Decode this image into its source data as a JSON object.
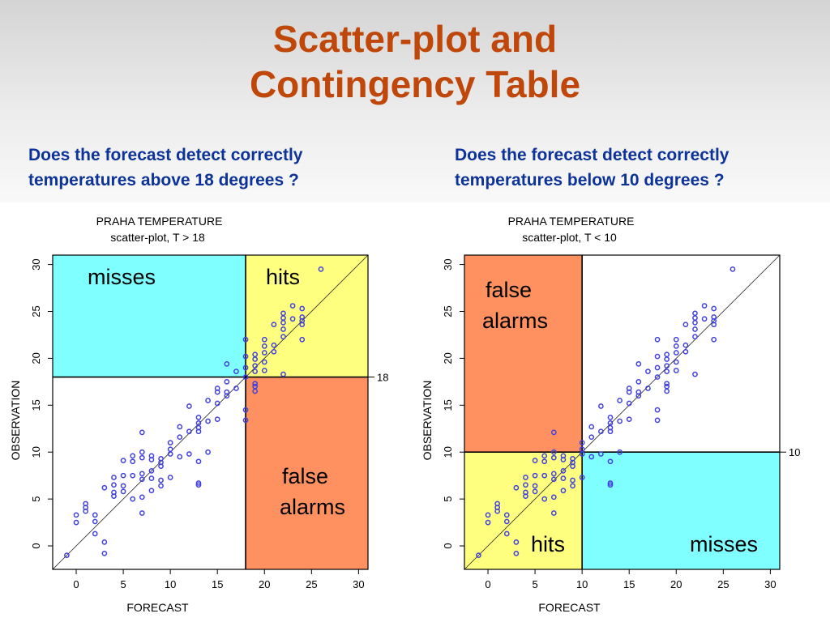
{
  "slide": {
    "title_line1": "Scatter-plot and",
    "title_line2": "Contingency Table"
  },
  "questions": {
    "left": {
      "line1": "Does the forecast detect correctly",
      "line2": "temperatures above 18 degrees ?"
    },
    "right": {
      "line1": "Does the forecast detect correctly",
      "line2": "temperatures below 10 degrees ?"
    }
  },
  "colors": {
    "title": "#c0470a",
    "question": "#0d3399",
    "cyan": "#7fffff",
    "yellow": "#ffff7f",
    "orange": "#ff9160",
    "points": "#4040e0"
  },
  "chart_data": [
    {
      "type": "scatter",
      "title": "PRAHA TEMPERATURE",
      "subtitle": "scatter-plot, T > 18",
      "xlabel": "FORECAST",
      "ylabel": "OBSERVATION",
      "xlim": [
        -2.5,
        31
      ],
      "ylim": [
        -2.5,
        31
      ],
      "xticks": [
        0,
        5,
        10,
        15,
        20,
        25,
        30
      ],
      "yticks": [
        0,
        5,
        10,
        15,
        20,
        25,
        30
      ],
      "threshold": 18,
      "threshold_label": "18",
      "diagonal": true,
      "regions": [
        {
          "name": "misses",
          "label_lines": [
            "misses"
          ],
          "x": [
            -2.5,
            18
          ],
          "y": [
            18,
            31
          ],
          "color": "#7fffff"
        },
        {
          "name": "hits",
          "label_lines": [
            "hits"
          ],
          "x": [
            18,
            31
          ],
          "y": [
            18,
            31
          ],
          "color": "#ffff7f"
        },
        {
          "name": "false-alarms",
          "label_lines": [
            "false",
            "alarms"
          ],
          "x": [
            18,
            31
          ],
          "y": [
            -2.5,
            18
          ],
          "color": "#ff9160"
        }
      ],
      "x": [
        -1,
        0,
        0,
        1,
        1,
        1,
        2,
        2,
        2,
        3,
        3,
        3,
        4,
        4,
        4,
        4,
        5,
        5,
        5,
        5,
        6,
        6,
        6,
        6,
        7,
        7,
        7,
        7,
        7,
        7,
        7,
        8,
        8,
        8,
        8,
        8,
        9,
        9,
        9,
        9,
        9,
        10,
        10,
        10,
        10,
        11,
        11,
        11,
        12,
        12,
        12,
        13,
        13,
        13,
        13,
        13,
        13,
        13,
        14,
        14,
        14,
        15,
        15,
        15,
        15,
        16,
        16,
        16,
        16,
        17,
        17,
        18,
        18,
        18,
        18,
        18,
        18,
        19,
        19,
        19,
        19,
        19,
        19,
        19,
        20,
        20,
        20,
        20,
        20,
        21,
        21,
        21,
        22,
        22,
        22,
        22,
        22,
        22,
        23,
        23,
        24,
        24,
        24,
        24,
        24,
        26
      ],
      "y": [
        -1,
        2.5,
        3.3,
        3.7,
        4.1,
        4.5,
        1.3,
        2.6,
        3.3,
        -0.8,
        0.4,
        6.2,
        5.3,
        5.7,
        6.5,
        7.3,
        5.8,
        6.4,
        7.5,
        9.1,
        5.0,
        7.5,
        9.0,
        9.6,
        3.5,
        5.2,
        7.1,
        7.7,
        9.4,
        10.0,
        12.1,
        5.9,
        7.2,
        8.0,
        9.2,
        9.6,
        6.4,
        7.0,
        8.5,
        8.9,
        9.3,
        7.3,
        9.8,
        10.3,
        11.0,
        9.5,
        11.6,
        12.7,
        9.8,
        12.2,
        14.9,
        6.5,
        6.7,
        9.0,
        12.2,
        12.6,
        13.1,
        13.7,
        10.0,
        13.3,
        15.5,
        13.5,
        15.2,
        16.4,
        16.8,
        16.0,
        16.4,
        17.5,
        19.4,
        16.8,
        18.6,
        13.4,
        14.5,
        18.0,
        19.0,
        20.2,
        22.0,
        16.5,
        17.0,
        17.3,
        18.6,
        19.2,
        19.9,
        20.4,
        18.7,
        19.6,
        20.6,
        21.3,
        22.0,
        20.7,
        21.4,
        23.6,
        18.3,
        22.3,
        23.1,
        23.8,
        24.3,
        24.8,
        24.2,
        25.6,
        22.0,
        23.6,
        24.0,
        24.4,
        25.3,
        29.5
      ]
    },
    {
      "type": "scatter",
      "title": "PRAHA TEMPERATURE",
      "subtitle": "scatter-plot, T < 10",
      "xlabel": "FORECAST",
      "ylabel": "OBSERVATION",
      "xlim": [
        -2.5,
        31
      ],
      "ylim": [
        -2.5,
        31
      ],
      "xticks": [
        0,
        5,
        10,
        15,
        20,
        25,
        30
      ],
      "yticks": [
        0,
        5,
        10,
        15,
        20,
        25,
        30
      ],
      "threshold": 10,
      "threshold_label": "10",
      "diagonal": true,
      "regions": [
        {
          "name": "false-alarms",
          "label_lines": [
            "false",
            "alarms"
          ],
          "x": [
            -2.5,
            10
          ],
          "y": [
            10,
            31
          ],
          "color": "#ff9160"
        },
        {
          "name": "hits",
          "label_lines": [
            "hits"
          ],
          "x": [
            -2.5,
            10
          ],
          "y": [
            -2.5,
            10
          ],
          "color": "#ffff7f"
        },
        {
          "name": "misses",
          "label_lines": [
            "misses"
          ],
          "x": [
            10,
            31
          ],
          "y": [
            -2.5,
            10
          ],
          "color": "#7fffff"
        }
      ],
      "x": [
        -1,
        0,
        0,
        1,
        1,
        1,
        2,
        2,
        2,
        3,
        3,
        3,
        4,
        4,
        4,
        4,
        5,
        5,
        5,
        5,
        6,
        6,
        6,
        6,
        7,
        7,
        7,
        7,
        7,
        7,
        7,
        8,
        8,
        8,
        8,
        8,
        9,
        9,
        9,
        9,
        9,
        10,
        10,
        10,
        10,
        11,
        11,
        11,
        12,
        12,
        12,
        13,
        13,
        13,
        13,
        13,
        13,
        13,
        14,
        14,
        14,
        15,
        15,
        15,
        15,
        16,
        16,
        16,
        16,
        17,
        17,
        18,
        18,
        18,
        18,
        18,
        18,
        19,
        19,
        19,
        19,
        19,
        19,
        19,
        20,
        20,
        20,
        20,
        20,
        21,
        21,
        21,
        22,
        22,
        22,
        22,
        22,
        22,
        23,
        23,
        24,
        24,
        24,
        24,
        24,
        26
      ],
      "y": [
        -1,
        2.5,
        3.3,
        3.7,
        4.1,
        4.5,
        1.3,
        2.6,
        3.3,
        -0.8,
        0.4,
        6.2,
        5.3,
        5.7,
        6.5,
        7.3,
        5.8,
        6.4,
        7.5,
        9.1,
        5.0,
        7.5,
        9.0,
        9.6,
        3.5,
        5.2,
        7.1,
        7.7,
        9.4,
        10.0,
        12.1,
        5.9,
        7.2,
        8.0,
        9.2,
        9.6,
        6.4,
        7.0,
        8.5,
        8.9,
        9.3,
        7.3,
        9.8,
        10.3,
        11.0,
        9.5,
        11.6,
        12.7,
        9.8,
        12.2,
        14.9,
        6.5,
        6.7,
        9.0,
        12.2,
        12.6,
        13.1,
        13.7,
        10.0,
        13.3,
        15.5,
        13.5,
        15.2,
        16.4,
        16.8,
        16.0,
        16.4,
        17.5,
        19.4,
        16.8,
        18.6,
        13.4,
        14.5,
        18.0,
        19.0,
        20.2,
        22.0,
        16.5,
        17.0,
        17.3,
        18.6,
        19.2,
        19.9,
        20.4,
        18.7,
        19.6,
        20.6,
        21.3,
        22.0,
        20.7,
        21.4,
        23.6,
        18.3,
        22.3,
        23.1,
        23.8,
        24.3,
        24.8,
        24.2,
        25.6,
        22.0,
        23.6,
        24.0,
        24.4,
        25.3,
        29.5
      ]
    }
  ]
}
